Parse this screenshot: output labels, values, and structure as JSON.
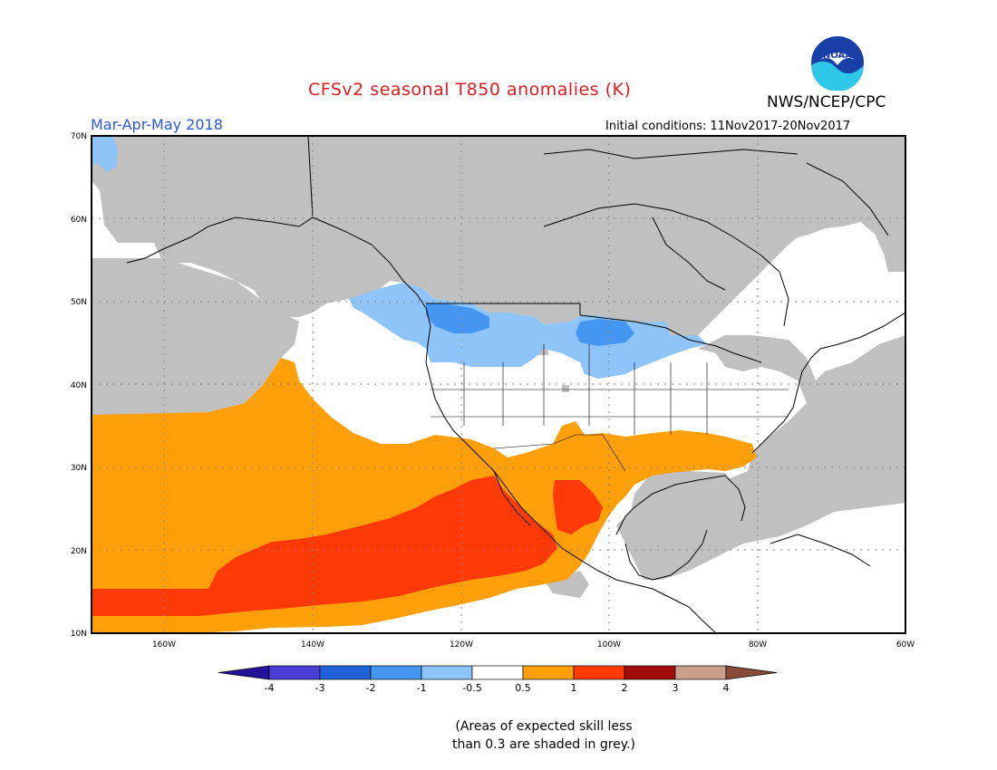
{
  "header": {
    "title": "CFSv2 seasonal T850 anomalies (K)",
    "season": "Mar-Apr-May 2018",
    "initial_conditions": "Initial conditions: 11Nov2017-20Nov2017",
    "agency": "NWS/NCEP/CPC",
    "logo_text": "NOAA",
    "title_color": "#e8191e",
    "season_color": "#2a56e0"
  },
  "map": {
    "lon_ticks": [
      "160W",
      "140W",
      "120W",
      "100W",
      "80W",
      "60W"
    ],
    "lat_ticks": [
      "70N",
      "60N",
      "50N",
      "40N",
      "30N",
      "20N",
      "10N"
    ],
    "grey_color": "#c0c0c0"
  },
  "colorbar": {
    "tick_labels": [
      "-4",
      "-3",
      "-2",
      "-1",
      "-0.5",
      "0.5",
      "1",
      "2",
      "3",
      "4"
    ],
    "colors": [
      "#24129a",
      "#4b3ed4",
      "#1f62d8",
      "#4596f0",
      "#8ec4f8",
      "#ffffff",
      "#ffa00a",
      "#ff3a06",
      "#a10c0a",
      "#c99f8c",
      "#8a4a3a"
    ]
  },
  "note": {
    "line1": "(Areas of expected skill less",
    "line2": "than 0.3 are shaded in grey.)"
  }
}
